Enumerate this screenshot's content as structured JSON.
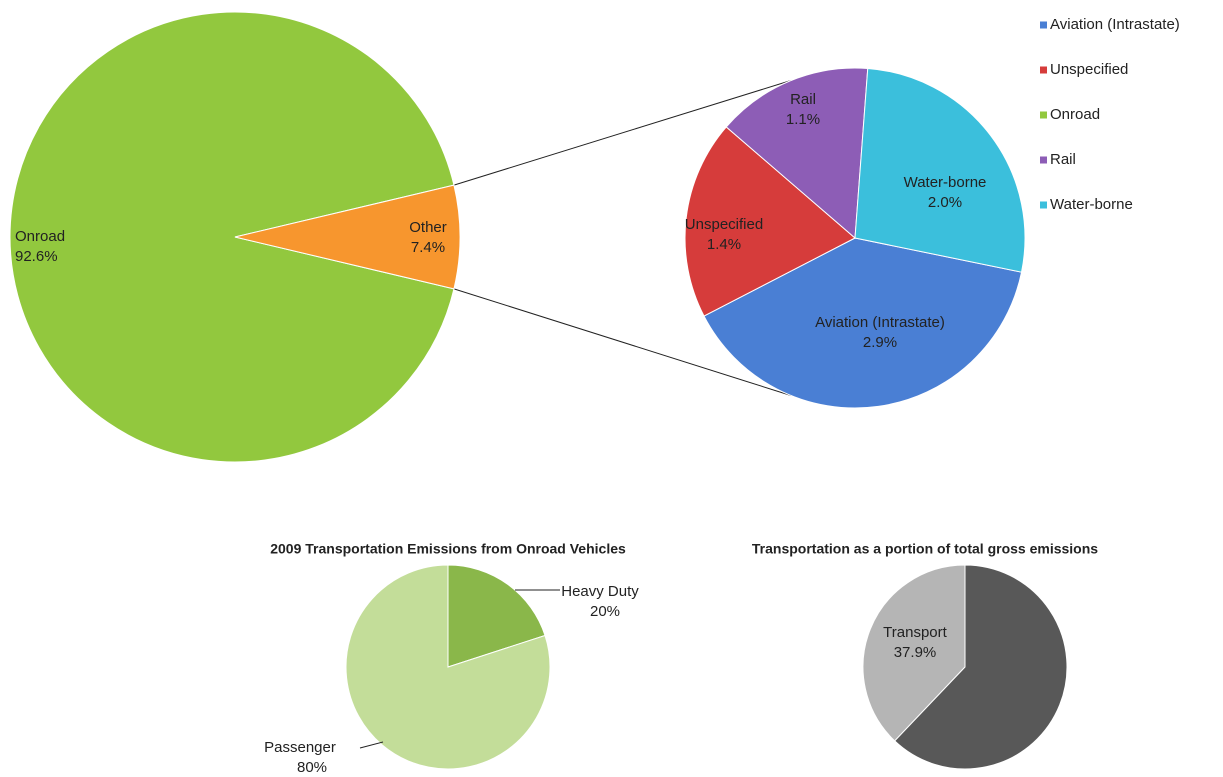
{
  "chart_data": [
    {
      "type": "pie-of-pie",
      "categories": [
        "Onroad",
        "Other"
      ],
      "values": [
        92.6,
        7.4
      ],
      "value_labels": [
        "92.6%",
        "7.4%"
      ],
      "colors": [
        "#92c83e",
        "#f7962e"
      ],
      "sub_categories": [
        "Aviation (Intrastate)",
        "Unspecified",
        "Rail",
        "Water-borne"
      ],
      "sub_values": [
        2.9,
        1.4,
        1.1,
        2.0
      ],
      "sub_value_labels": [
        "2.9%",
        "1.4%",
        "1.1%",
        "2.0%"
      ],
      "sub_colors": [
        "#4a7fd4",
        "#d63c3b",
        "#8d5db6",
        "#3bbfdc"
      ],
      "legend": [
        "Aviation (Intrastate)",
        "Unspecified",
        "Onroad",
        "Rail",
        "Water-borne"
      ]
    },
    {
      "type": "pie",
      "title": "2009 Transportation Emissions from Onroad Vehicles",
      "categories": [
        "Heavy Duty",
        "Passenger"
      ],
      "values": [
        20,
        80
      ],
      "value_labels": [
        "20%",
        "80%"
      ],
      "colors": [
        "#8ab74a",
        "#c3dd99"
      ]
    },
    {
      "type": "pie",
      "title": "Transportation as a portion of total gross emissions",
      "categories": [
        "Transport",
        null
      ],
      "values": [
        37.9,
        62.1
      ],
      "value_labels": [
        "37.9%",
        null
      ],
      "colors": [
        "#b5b5b5",
        "#585858"
      ]
    }
  ]
}
